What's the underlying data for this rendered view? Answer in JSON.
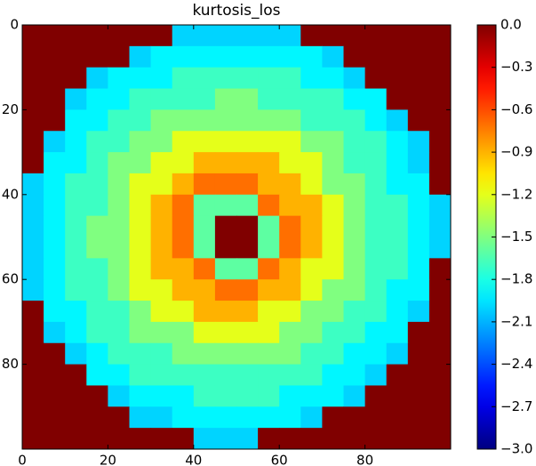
{
  "chart_data": {
    "type": "heatmap",
    "title": "kurtosis_los",
    "colormap": "jet",
    "xlim": [
      0,
      100
    ],
    "ylim": [
      100,
      0
    ],
    "xticks": [
      0,
      20,
      40,
      60,
      80
    ],
    "yticks": [
      0,
      20,
      40,
      60,
      80
    ],
    "zlim": [
      -3,
      0
    ],
    "zticks": [
      {
        "value": 0,
        "label": "0.0"
      },
      {
        "value": -0.3,
        "label": "−0.3"
      },
      {
        "value": -0.6,
        "label": "−0.6"
      },
      {
        "value": -0.9,
        "label": "−0.9"
      },
      {
        "value": -1.2,
        "label": "−1.2"
      },
      {
        "value": -1.5,
        "label": "−1.5"
      },
      {
        "value": -1.8,
        "label": "−1.8"
      },
      {
        "value": -2.1,
        "label": "−2.1"
      },
      {
        "value": -2.4,
        "label": "−2.4"
      },
      {
        "value": -2.7,
        "label": "−2.7"
      },
      {
        "value": -3,
        "label": "−3.0"
      }
    ],
    "z": [
      [
        0,
        0,
        0,
        0,
        0,
        0,
        0,
        -2,
        -2,
        -2,
        -2,
        -2,
        -2,
        0,
        0,
        0,
        0,
        0,
        0,
        0
      ],
      [
        0,
        0,
        0,
        0,
        0,
        -2,
        -1.9,
        -1.9,
        -1.9,
        -1.9,
        -1.9,
        -1.9,
        -1.9,
        -1.9,
        -2,
        0,
        0,
        0,
        0,
        0
      ],
      [
        0,
        0,
        0,
        -2,
        -1.9,
        -1.9,
        -1.9,
        -1.7,
        -1.7,
        -1.7,
        -1.7,
        -1.7,
        -1.7,
        -1.9,
        -1.9,
        -2,
        0,
        0,
        0,
        0
      ],
      [
        0,
        0,
        -2,
        -1.9,
        -1.9,
        -1.7,
        -1.7,
        -1.7,
        -1.7,
        -1.5,
        -1.5,
        -1.7,
        -1.7,
        -1.7,
        -1.7,
        -1.9,
        -1.9,
        0,
        0,
        0
      ],
      [
        0,
        0,
        -1.9,
        -1.9,
        -1.7,
        -1.7,
        -1.5,
        -1.5,
        -1.5,
        -1.5,
        -1.5,
        -1.5,
        -1.5,
        -1.7,
        -1.7,
        -1.7,
        -1.9,
        -2,
        0,
        0
      ],
      [
        0,
        -2,
        -1.9,
        -1.7,
        -1.7,
        -1.5,
        -1.5,
        -1.2,
        -1.2,
        -1.2,
        -1.2,
        -1.2,
        -1.2,
        -1.5,
        -1.5,
        -1.7,
        -1.7,
        -1.9,
        -2,
        0
      ],
      [
        0,
        -1.9,
        -1.9,
        -1.7,
        -1.5,
        -1.5,
        -1.2,
        -1.2,
        -0.9,
        -0.9,
        -0.9,
        -0.9,
        -1.2,
        -1.2,
        -1.5,
        -1.7,
        -1.7,
        -1.9,
        -2,
        0
      ],
      [
        -2,
        -1.9,
        -1.7,
        -1.7,
        -1.5,
        -1.2,
        -1.2,
        -0.9,
        -0.7,
        -0.7,
        -0.7,
        -0.9,
        -0.9,
        -1.2,
        -1.5,
        -1.5,
        -1.7,
        -1.9,
        -1.9,
        0
      ],
      [
        -2,
        -1.9,
        -1.7,
        -1.7,
        -1.5,
        -1.2,
        -0.9,
        -0.7,
        -1.6,
        -1.6,
        -1.6,
        -0.7,
        -0.9,
        -0.9,
        -1.2,
        -1.5,
        -1.7,
        -1.7,
        -1.9,
        -2
      ],
      [
        -2,
        -1.9,
        -1.7,
        -1.5,
        -1.5,
        -1.2,
        -0.9,
        -0.7,
        -1.6,
        0,
        0,
        -1.6,
        -0.7,
        -0.9,
        -1.2,
        -1.5,
        -1.7,
        -1.7,
        -1.9,
        -2
      ],
      [
        -2,
        -1.9,
        -1.7,
        -1.5,
        -1.5,
        -1.2,
        -0.9,
        -0.7,
        -1.6,
        0,
        0,
        -1.6,
        -0.7,
        -0.9,
        -1.2,
        -1.5,
        -1.7,
        -1.7,
        -1.9,
        -2
      ],
      [
        -2,
        -1.9,
        -1.7,
        -1.7,
        -1.5,
        -1.2,
        -0.9,
        -0.9,
        -0.7,
        -1.6,
        -1.6,
        -0.7,
        -0.9,
        -1.2,
        -1.2,
        -1.5,
        -1.7,
        -1.7,
        -1.9,
        0
      ],
      [
        -2,
        -1.9,
        -1.7,
        -1.7,
        -1.5,
        -1.2,
        -1.2,
        -0.9,
        -0.9,
        -0.7,
        -0.7,
        -0.9,
        -0.9,
        -1.2,
        -1.5,
        -1.5,
        -1.7,
        -1.9,
        -1.9,
        0
      ],
      [
        0,
        -1.9,
        -1.9,
        -1.7,
        -1.7,
        -1.5,
        -1.2,
        -1.2,
        -0.9,
        -0.9,
        -0.9,
        -1.2,
        -1.2,
        -1.5,
        -1.5,
        -1.7,
        -1.7,
        -1.9,
        -2,
        0
      ],
      [
        0,
        -2,
        -1.9,
        -1.7,
        -1.7,
        -1.5,
        -1.5,
        -1.5,
        -1.2,
        -1.2,
        -1.2,
        -1.2,
        -1.5,
        -1.5,
        -1.7,
        -1.7,
        -1.9,
        -1.9,
        0,
        0
      ],
      [
        0,
        0,
        -2,
        -1.9,
        -1.7,
        -1.7,
        -1.7,
        -1.5,
        -1.5,
        -1.5,
        -1.5,
        -1.5,
        -1.5,
        -1.7,
        -1.7,
        -1.9,
        -1.9,
        -2,
        0,
        0
      ],
      [
        0,
        0,
        0,
        -1.9,
        -1.9,
        -1.7,
        -1.7,
        -1.7,
        -1.7,
        -1.7,
        -1.7,
        -1.7,
        -1.7,
        -1.7,
        -1.9,
        -1.9,
        -2,
        0,
        0,
        0
      ],
      [
        0,
        0,
        0,
        0,
        -2,
        -1.9,
        -1.9,
        -1.9,
        -1.7,
        -1.7,
        -1.7,
        -1.7,
        -1.9,
        -1.9,
        -1.9,
        -2,
        0,
        0,
        0,
        0
      ],
      [
        0,
        0,
        0,
        0,
        0,
        -2,
        -2,
        -1.9,
        -1.9,
        -1.9,
        -1.9,
        -1.9,
        -1.9,
        -2,
        0,
        0,
        0,
        0,
        0,
        0
      ],
      [
        0,
        0,
        0,
        0,
        0,
        0,
        0,
        0,
        -2,
        -2,
        -2,
        0,
        0,
        0,
        0,
        0,
        0,
        0,
        0,
        0
      ]
    ]
  }
}
